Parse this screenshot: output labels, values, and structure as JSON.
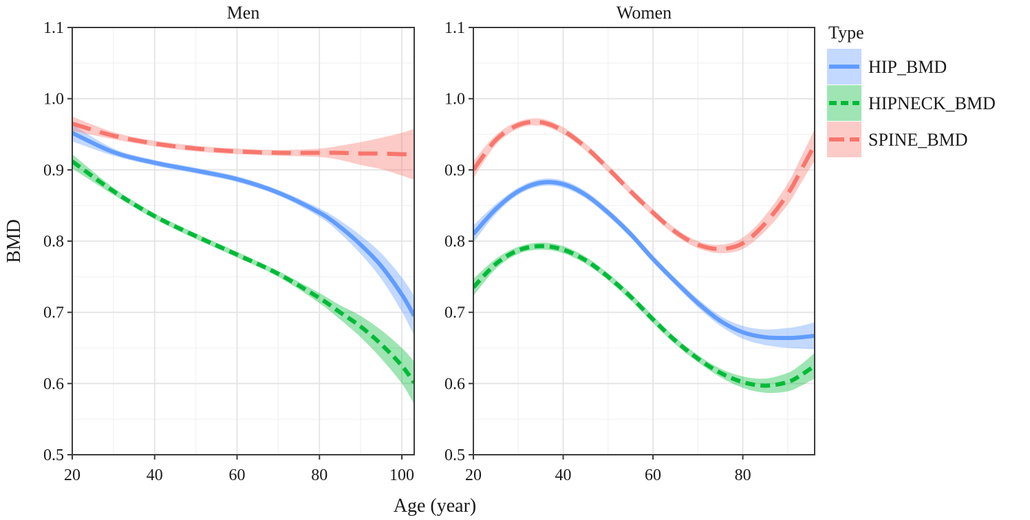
{
  "chart_data": {
    "type": "line",
    "xlabel": "Age (year)",
    "ylabel": "BMD",
    "ylim": [
      0.5,
      1.1
    ],
    "y_ticks": [
      0.5,
      0.6,
      0.7,
      0.8,
      0.9,
      1.0,
      1.1
    ],
    "y_tick_labels": [
      "0.5",
      "0.6",
      "0.7",
      "0.8",
      "0.9",
      "1.0",
      "1.1"
    ],
    "grid": true,
    "legend": {
      "title": "Type",
      "placement": "right",
      "entries": [
        {
          "label": "HIP_BMD",
          "color": "#619CFF",
          "dash": "solid"
        },
        {
          "label": "HIPNECK_BMD",
          "color": "#00BA38",
          "dash": "dashed"
        },
        {
          "label": "SPINE_BMD",
          "color": "#F8766D",
          "dash": "longdash"
        }
      ]
    },
    "panels": [
      {
        "title": "Men",
        "xlim": [
          20,
          103
        ],
        "x_ticks": [
          20,
          40,
          60,
          80,
          100
        ],
        "x_tick_labels": [
          "20",
          "40",
          "60",
          "80",
          "100"
        ],
        "series": [
          {
            "name": "HIP_BMD",
            "x": [
              20,
              30,
              40,
              50,
              60,
              70,
              80,
              85,
              90,
              95,
              100,
              103
            ],
            "y": [
              0.952,
              0.925,
              0.91,
              0.899,
              0.887,
              0.868,
              0.84,
              0.82,
              0.795,
              0.765,
              0.725,
              0.695
            ],
            "band": [
              0.012,
              0.005,
              0.004,
              0.004,
              0.004,
              0.004,
              0.006,
              0.009,
              0.013,
              0.018,
              0.024,
              0.028
            ]
          },
          {
            "name": "HIPNECK_BMD",
            "x": [
              20,
              30,
              40,
              50,
              60,
              70,
              80,
              85,
              90,
              95,
              100,
              103
            ],
            "y": [
              0.912,
              0.87,
              0.835,
              0.807,
              0.781,
              0.754,
              0.72,
              0.7,
              0.68,
              0.655,
              0.625,
              0.601
            ],
            "band": [
              0.01,
              0.005,
              0.004,
              0.004,
              0.004,
              0.004,
              0.007,
              0.01,
              0.015,
              0.02,
              0.025,
              0.03
            ]
          },
          {
            "name": "SPINE_BMD",
            "x": [
              20,
              30,
              40,
              50,
              60,
              70,
              80,
              85,
              90,
              95,
              100,
              103
            ],
            "y": [
              0.965,
              0.948,
              0.937,
              0.93,
              0.926,
              0.924,
              0.924,
              0.924,
              0.923,
              0.923,
              0.922,
              0.922
            ],
            "band": [
              0.01,
              0.005,
              0.004,
              0.004,
              0.004,
              0.004,
              0.006,
              0.01,
              0.016,
              0.022,
              0.03,
              0.036
            ]
          }
        ]
      },
      {
        "title": "Women",
        "xlim": [
          20,
          96
        ],
        "x_ticks": [
          20,
          40,
          60,
          80
        ],
        "x_tick_labels": [
          "20",
          "40",
          "60",
          "80"
        ],
        "series": [
          {
            "name": "HIP_BMD",
            "x": [
              20,
              25,
              30,
              35,
              40,
              45,
              50,
              55,
              60,
              65,
              70,
              75,
              80,
              85,
              90,
              93,
              96
            ],
            "y": [
              0.81,
              0.845,
              0.87,
              0.882,
              0.88,
              0.865,
              0.84,
              0.81,
              0.775,
              0.743,
              0.713,
              0.688,
              0.672,
              0.665,
              0.664,
              0.665,
              0.667
            ],
            "band": [
              0.012,
              0.007,
              0.005,
              0.005,
              0.005,
              0.005,
              0.005,
              0.005,
              0.005,
              0.005,
              0.006,
              0.007,
              0.009,
              0.011,
              0.014,
              0.016,
              0.019
            ]
          },
          {
            "name": "HIPNECK_BMD",
            "x": [
              20,
              25,
              30,
              35,
              40,
              45,
              50,
              55,
              60,
              65,
              70,
              75,
              80,
              85,
              90,
              93,
              96
            ],
            "y": [
              0.735,
              0.768,
              0.787,
              0.793,
              0.788,
              0.773,
              0.75,
              0.722,
              0.69,
              0.66,
              0.635,
              0.615,
              0.602,
              0.597,
              0.602,
              0.612,
              0.625
            ],
            "band": [
              0.012,
              0.007,
              0.005,
              0.005,
              0.005,
              0.005,
              0.005,
              0.005,
              0.005,
              0.005,
              0.005,
              0.006,
              0.008,
              0.01,
              0.013,
              0.015,
              0.018
            ]
          },
          {
            "name": "SPINE_BMD",
            "x": [
              20,
              25,
              30,
              35,
              40,
              45,
              50,
              55,
              60,
              65,
              70,
              75,
              80,
              85,
              90,
              93,
              96
            ],
            "y": [
              0.9,
              0.942,
              0.963,
              0.967,
              0.955,
              0.932,
              0.902,
              0.87,
              0.84,
              0.813,
              0.795,
              0.789,
              0.797,
              0.825,
              0.866,
              0.9,
              0.935
            ],
            "band": [
              0.012,
              0.007,
              0.005,
              0.005,
              0.005,
              0.005,
              0.005,
              0.005,
              0.005,
              0.005,
              0.005,
              0.006,
              0.008,
              0.011,
              0.015,
              0.018,
              0.022
            ]
          }
        ]
      }
    ]
  }
}
